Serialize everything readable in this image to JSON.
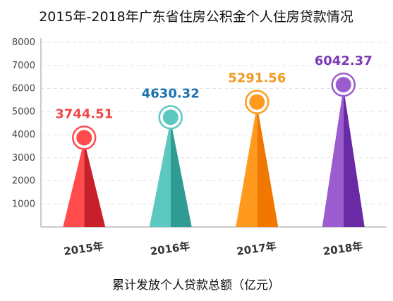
{
  "chart_data": {
    "type": "bar",
    "title": "2015年-2018年广东省住房公积金个人住房贷款情况",
    "xlabel": "累计发放个人贷款总额（亿元）",
    "ylabel": "",
    "categories": [
      "2015年",
      "2016年",
      "2017年",
      "2018年"
    ],
    "values": [
      3744.51,
      4630.32,
      5291.56,
      6042.37
    ],
    "value_labels": [
      "3744.51",
      "4630.32",
      "5291.56",
      "6042.37"
    ],
    "ylim": [
      0,
      8000
    ],
    "yticks": [
      1000,
      2000,
      3000,
      4000,
      5000,
      6000,
      7000,
      8000
    ],
    "ytick_labels": [
      "1000",
      "2000",
      "3000",
      "4000",
      "5000",
      "6000",
      "7000",
      "8000"
    ],
    "grid": true,
    "bar_style": "cone",
    "colors": {
      "light": [
        "#ff4b4b",
        "#5cc8c0",
        "#ff9a1f",
        "#9a5ccf"
      ],
      "dark": [
        "#c8202a",
        "#2f9c94",
        "#f07800",
        "#6a2aa5"
      ],
      "label": [
        "#f04747",
        "#1a72b0",
        "#f39a22",
        "#7b3bb5"
      ]
    }
  }
}
